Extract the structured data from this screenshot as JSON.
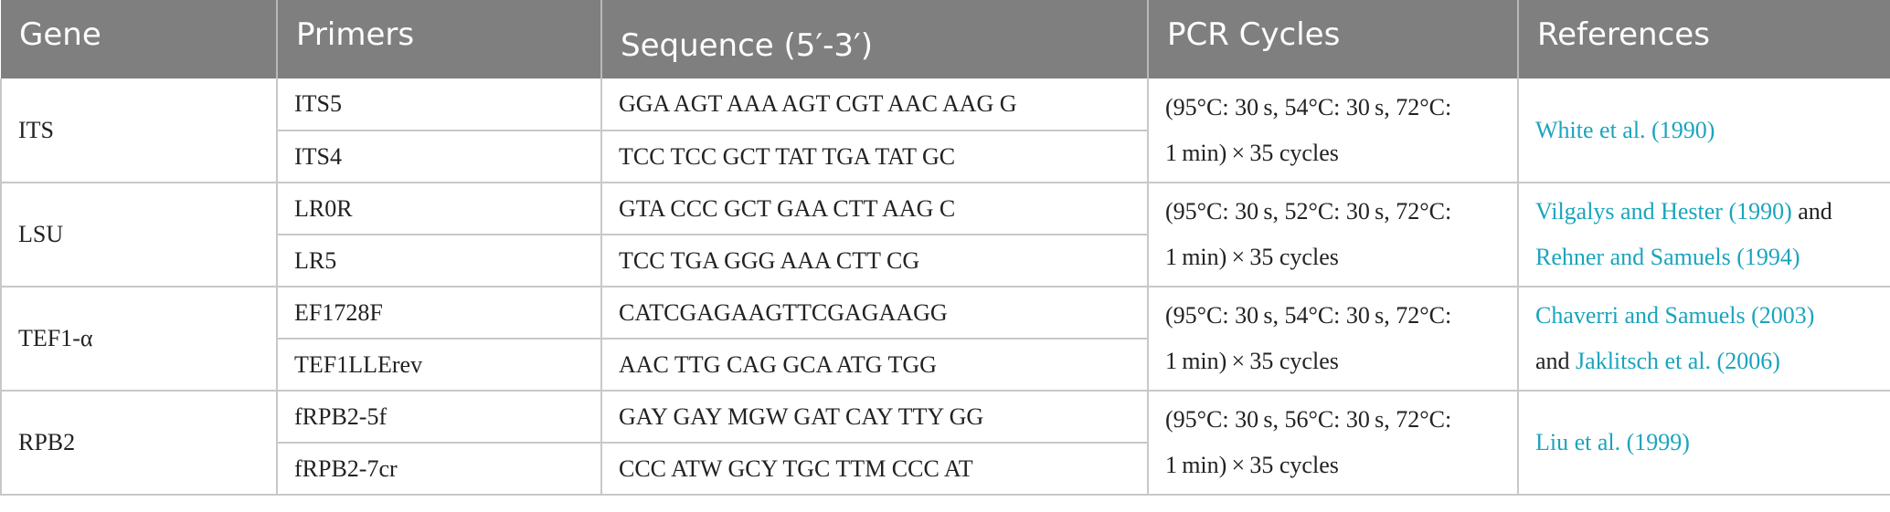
{
  "headers": [
    "Gene",
    "Primers",
    "Sequence (5′-3′)",
    "PCR Cycles",
    "References"
  ],
  "groups": [
    {
      "gene": "ITS",
      "primers": [
        {
          "name": "ITS5",
          "sequence": "GGA AGT AAA AGT CGT AAC AAG G"
        },
        {
          "name": "ITS4",
          "sequence": "TCC TCC GCT TAT TGA TAT GC"
        }
      ],
      "cycles_line1": "(95°C: 30 s, 54°C: 30 s, 72°C:",
      "cycles_line2": "1 min) × 35 cycles",
      "ref_link1": "White et al. (1990)"
    },
    {
      "gene": "LSU",
      "primers": [
        {
          "name": "LR0R",
          "sequence": "GTA CCC GCT GAA CTT AAG C"
        },
        {
          "name": "LR5",
          "sequence": "TCC TGA GGG AAA CTT CG"
        }
      ],
      "cycles_line1": "(95°C: 30 s, 52°C: 30 s, 72°C:",
      "cycles_line2": "1 min) × 35 cycles",
      "ref_link1": "Vilgalys and Hester (1990)",
      "ref_join1": " and",
      "ref_link2": "Rehner and Samuels (1994)"
    },
    {
      "gene": "TEF1-α",
      "primers": [
        {
          "name": "EF1728F",
          "sequence": "CATCGAGAAGTTCGAGAAGG"
        },
        {
          "name": "TEF1LLErev",
          "sequence": "AAC TTG CAG GCA ATG TGG"
        }
      ],
      "cycles_line1": "(95°C: 30 s, 54°C: 30 s, 72°C:",
      "cycles_line2": "1 min) × 35 cycles",
      "ref_link1": "Chaverri and Samuels (2003)",
      "ref_join2": "and ",
      "ref_link2": "Jaklitsch et al. (2006)"
    },
    {
      "gene": "RPB2",
      "primers": [
        {
          "name": "fRPB2-5f",
          "sequence": "GAY GAY MGW GAT CAY TTY GG"
        },
        {
          "name": "fRPB2-7cr",
          "sequence": "CCC ATW GCY TGC TTM CCC AT"
        }
      ],
      "cycles_line1": "(95°C: 30 s, 56°C: 30 s, 72°C:",
      "cycles_line2": "1 min) × 35 cycles",
      "ref_link1": "Liu et al. (1999)"
    }
  ],
  "colors": {
    "header_bg": "#7f7f7f",
    "header_text": "#ffffff",
    "link": "#1ba4bd",
    "border": "#c8c8c8"
  }
}
